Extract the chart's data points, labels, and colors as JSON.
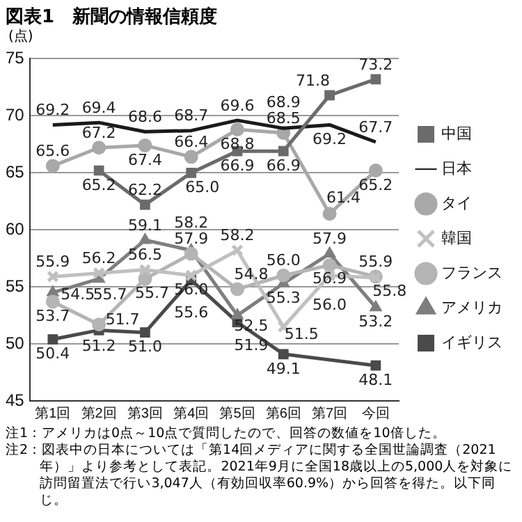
{
  "chart_data": {
    "type": "line",
    "title": "図表1　新聞の情報信頼度",
    "ylabel": "(点)",
    "categories": [
      "第1回",
      "第2回",
      "第3回",
      "第4回",
      "第5回",
      "第6回",
      "第7回",
      "今回"
    ],
    "ylim": [
      45,
      75
    ],
    "yticks": [
      45,
      50,
      55,
      60,
      65,
      70,
      75
    ],
    "grid": "y",
    "legend": "right",
    "series": [
      {
        "name": "中国",
        "color": "#6b6b6b",
        "marker": "square",
        "values": [
          null,
          65.2,
          62.2,
          65.0,
          66.9,
          66.9,
          71.8,
          73.2
        ],
        "value_labels": [
          null,
          "65.2",
          "62.2",
          "65.0",
          "66.9",
          "66.9",
          "71.8",
          "73.2"
        ]
      },
      {
        "name": "日本",
        "color": "#1a1a1a",
        "marker": "none",
        "values": [
          69.2,
          69.4,
          68.6,
          68.7,
          69.6,
          68.9,
          69.2,
          67.7
        ],
        "value_labels": [
          "69.2",
          "69.4",
          "68.6",
          "68.7",
          "69.6",
          "68.9",
          "69.2",
          "67.7"
        ]
      },
      {
        "name": "タイ",
        "color": "#a8a8a8",
        "marker": "circle",
        "values": [
          65.6,
          67.2,
          67.4,
          66.4,
          68.8,
          68.5,
          61.4,
          65.2
        ],
        "value_labels": [
          "65.6",
          "67.2",
          "67.4",
          "66.4",
          "68.8",
          "68.5",
          "61.4",
          "65.2"
        ]
      },
      {
        "name": "韓国",
        "color": "#c0c0c0",
        "marker": "cross",
        "values": [
          55.9,
          56.2,
          56.5,
          56.0,
          58.2,
          51.5,
          56.0,
          55.8
        ],
        "value_labels": [
          "55.9",
          "56.2",
          "56.5",
          "56.0",
          "58.2",
          "51.5",
          "56.0",
          "55.8"
        ]
      },
      {
        "name": "フランス",
        "color": "#b4b4b4",
        "marker": "circle",
        "values": [
          53.7,
          51.7,
          55.7,
          57.9,
          54.8,
          56.0,
          56.9,
          55.9
        ],
        "value_labels": [
          "53.7",
          "51.7",
          "55.7",
          "57.9",
          "54.8",
          "56.0",
          "56.9",
          "55.9"
        ]
      },
      {
        "name": "アメリカ",
        "color": "#7e7e7e",
        "marker": "triangle",
        "values": [
          54.5,
          55.7,
          59.1,
          58.2,
          52.5,
          55.3,
          57.9,
          53.2
        ],
        "value_labels": [
          "54.5",
          "55.7",
          "59.1",
          "58.2",
          "52.5",
          "55.3",
          "57.9",
          "53.2"
        ]
      },
      {
        "name": "イギリス",
        "color": "#4a4a4a",
        "marker": "square",
        "values": [
          50.4,
          51.2,
          51.0,
          55.6,
          51.9,
          49.1,
          null,
          48.1
        ],
        "value_labels": [
          "50.4",
          "51.2",
          "51.0",
          "55.6",
          "51.9",
          "49.1",
          null,
          "48.1"
        ]
      }
    ],
    "annotations": [
      "注1：アメリカは0点～10点で質問したので、回答の数値を10倍した。",
      "注2：図表中の日本については「第14回メディアに関する全国世論調査（2021年）」より参考として表記。2021年9月に全国18歳以上の5,000人を対象に訪問留置法で行い3,047人（有効回収率60.9%）から回答を得た。以下同じ。"
    ]
  }
}
